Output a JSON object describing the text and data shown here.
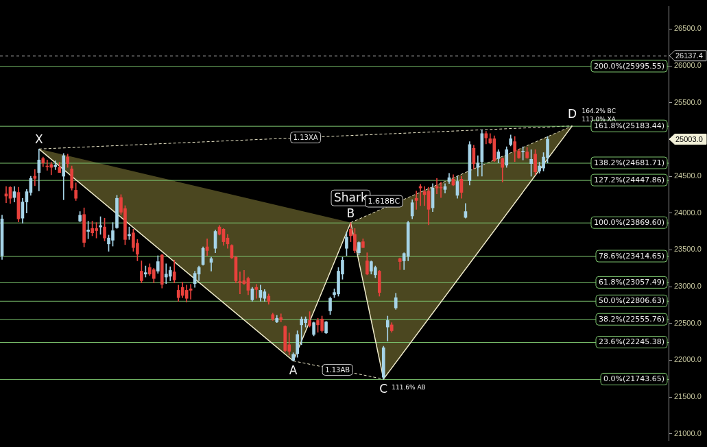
{
  "chart_data": {
    "type": "candlestick",
    "categories": [
      null,
      null,
      null,
      null,
      null,
      null,
      null,
      null,
      null,
      null,
      null,
      null,
      null,
      null,
      null,
      null,
      null,
      null,
      null,
      null,
      null,
      null,
      null,
      null,
      null,
      null,
      null,
      null,
      null,
      null,
      null,
      null,
      null,
      null,
      null,
      null,
      null,
      null,
      null,
      null,
      null,
      null,
      null,
      null,
      null,
      null,
      null,
      null,
      null,
      null,
      null,
      null,
      null,
      null,
      null,
      null,
      null,
      null,
      null,
      null,
      null,
      null,
      null,
      null,
      null,
      null,
      null,
      null,
      null,
      null,
      null,
      null,
      null,
      null,
      null,
      null,
      null,
      null,
      null,
      null,
      null,
      null,
      null,
      null,
      null,
      null,
      null,
      null,
      null,
      null,
      null,
      null,
      null,
      null,
      null,
      null,
      null,
      null,
      null,
      null,
      null,
      null,
      null,
      null,
      null,
      null,
      null,
      null,
      null,
      null,
      null,
      null,
      null,
      null,
      null,
      null,
      null,
      null,
      null,
      null,
      null,
      null,
      null,
      null,
      null,
      null,
      null,
      null,
      null,
      null,
      null,
      null,
      null,
      null,
      null,
      null,
      null,
      null,
      null,
      null,
      null,
      null,
      null,
      null,
      null,
      null,
      null,
      null,
      null,
      null,
      null,
      null,
      null,
      null,
      null,
      null,
      null,
      null,
      null,
      null,
      null,
      null,
      null
    ],
    "ylim": [
      20910,
      26805
    ],
    "yticks": [
      {
        "value": 21000,
        "label": "21000.0"
      },
      {
        "value": 21500,
        "label": "21500.0"
      },
      {
        "value": 22000,
        "label": "22000.0"
      },
      {
        "value": 22500,
        "label": "22500.0"
      },
      {
        "value": 23000,
        "label": "23000.0"
      },
      {
        "value": 23500,
        "label": "23500.0"
      },
      {
        "value": 24000,
        "label": "24000.0"
      },
      {
        "value": 24500,
        "label": "24500.0"
      },
      {
        "value": 25000,
        "label": null
      },
      {
        "value": 25500,
        "label": "25500.0"
      },
      {
        "value": 26000,
        "label": "26000.0"
      },
      {
        "value": 26500,
        "label": "26500.0"
      }
    ],
    "tick_labels": "y",
    "series": [
      {
        "type": "candlestick",
        "ohlc": [
          [
            23420,
            23970,
            23370,
            23920
          ],
          [
            24260,
            24360,
            24140,
            24230
          ],
          [
            24350,
            24360,
            24130,
            24200
          ],
          [
            24210,
            24360,
            24150,
            24290
          ],
          [
            24280,
            24350,
            23880,
            23920
          ],
          [
            23930,
            24200,
            23860,
            24150
          ],
          [
            24150,
            24320,
            24000,
            24290
          ],
          [
            24280,
            24500,
            24240,
            24470
          ],
          [
            24500,
            24590,
            24370,
            24470
          ],
          [
            24550,
            24870,
            24300,
            24720
          ],
          [
            24740,
            24760,
            24630,
            24680
          ],
          [
            24640,
            24720,
            24580,
            24630
          ],
          [
            24660,
            24690,
            24520,
            24620
          ],
          [
            24630,
            24710,
            24590,
            24650
          ],
          [
            24620,
            24690,
            24550,
            24550
          ],
          [
            24500,
            24810,
            24180,
            24780
          ],
          [
            24760,
            24800,
            24620,
            24670
          ],
          [
            24600,
            24640,
            24310,
            24340
          ],
          [
            24310,
            24410,
            24170,
            24200
          ],
          [
            23890,
            24020,
            23880,
            23970
          ],
          [
            23980,
            24070,
            23540,
            23600
          ],
          [
            23750,
            23890,
            23650,
            23770
          ],
          [
            23790,
            23890,
            23690,
            23730
          ],
          [
            23790,
            23870,
            23660,
            23760
          ],
          [
            23810,
            23950,
            23710,
            23830
          ],
          [
            23810,
            23930,
            23620,
            23660
          ],
          [
            23580,
            23700,
            23480,
            23660
          ],
          [
            23630,
            23870,
            23550,
            23760
          ],
          [
            23800,
            24240,
            23790,
            24200
          ],
          [
            24210,
            24250,
            23980,
            24010
          ],
          [
            24060,
            24100,
            23570,
            23640
          ],
          [
            23690,
            23810,
            23640,
            23710
          ],
          [
            23730,
            23780,
            23480,
            23530
          ],
          [
            23590,
            23640,
            23350,
            23440
          ],
          [
            23210,
            23350,
            23050,
            23080
          ],
          [
            23170,
            23280,
            23130,
            23190
          ],
          [
            23260,
            23310,
            23150,
            23170
          ],
          [
            23230,
            23250,
            23050,
            23110
          ],
          [
            23210,
            23420,
            23180,
            23340
          ],
          [
            23430,
            23440,
            22980,
            23030
          ],
          [
            23130,
            23310,
            23040,
            23170
          ],
          [
            23140,
            23270,
            23080,
            23220
          ],
          [
            23200,
            23360,
            23050,
            23090
          ],
          [
            22950,
            23020,
            22800,
            22850
          ],
          [
            22990,
            23060,
            22850,
            22880
          ],
          [
            22950,
            23020,
            22790,
            22840
          ],
          [
            22970,
            23030,
            22830,
            22950
          ],
          [
            23040,
            23210,
            22990,
            23180
          ],
          [
            23170,
            23280,
            23080,
            23260
          ],
          [
            23300,
            23540,
            23290,
            23520
          ],
          [
            23540,
            23650,
            23420,
            23490
          ],
          [
            23330,
            23400,
            23210,
            23380
          ],
          [
            23520,
            23770,
            23460,
            23750
          ],
          [
            23810,
            23830,
            23700,
            23710
          ],
          [
            23780,
            23790,
            23560,
            23610
          ],
          [
            23660,
            23710,
            23520,
            23580
          ],
          [
            23560,
            23570,
            23380,
            23390
          ],
          [
            23400,
            23410,
            23050,
            23080
          ],
          [
            23070,
            23200,
            22900,
            23050
          ],
          [
            23080,
            23220,
            23030,
            23040
          ],
          [
            23110,
            23130,
            22890,
            22950
          ],
          [
            22820,
            22990,
            22800,
            22970
          ],
          [
            22990,
            23030,
            22840,
            22960
          ],
          [
            22850,
            23020,
            22800,
            22950
          ],
          [
            22840,
            22960,
            22800,
            22930
          ],
          [
            22870,
            22900,
            22760,
            22800
          ],
          [
            22620,
            22640,
            22540,
            22560
          ],
          [
            22520,
            22610,
            22510,
            22570
          ],
          [
            22580,
            22630,
            22520,
            22550
          ],
          [
            22460,
            22470,
            22110,
            22130
          ],
          [
            22210,
            22370,
            22070,
            22120
          ],
          [
            22000,
            22100,
            21990,
            22080
          ],
          [
            22090,
            22400,
            22040,
            22350
          ],
          [
            22480,
            22590,
            22210,
            22560
          ],
          [
            22510,
            22590,
            22450,
            22560
          ],
          [
            22540,
            22660,
            22450,
            22470
          ],
          [
            22350,
            22520,
            22330,
            22510
          ],
          [
            22540,
            22570,
            22380,
            22480
          ],
          [
            22560,
            22600,
            22380,
            22400
          ],
          [
            22370,
            22530,
            22360,
            22520
          ],
          [
            22670,
            22860,
            22620,
            22840
          ],
          [
            22890,
            22970,
            22850,
            22920
          ],
          [
            22900,
            23260,
            22870,
            23210
          ],
          [
            23170,
            23400,
            23100,
            23360
          ],
          [
            23520,
            23740,
            23420,
            23670
          ],
          [
            23780,
            23869.6,
            23610,
            23690
          ],
          [
            23710,
            23790,
            23460,
            23490
          ],
          [
            23460,
            23610,
            23430,
            23600
          ],
          [
            23610,
            23650,
            23530,
            23530
          ],
          [
            23350,
            23460,
            23160,
            23170
          ],
          [
            23210,
            23350,
            23170,
            23340
          ],
          [
            23160,
            23280,
            23120,
            23260
          ],
          [
            23210,
            23220,
            22870,
            22920
          ],
          [
            21770,
            22190,
            21743.65,
            22170
          ],
          [
            22450,
            22600,
            22260,
            22540
          ],
          [
            22480,
            22510,
            22380,
            22400
          ],
          [
            22710,
            22910,
            22690,
            22850
          ],
          [
            23380,
            23390,
            23230,
            23340
          ],
          [
            23350,
            23460,
            23230,
            23450
          ],
          [
            23410,
            23890,
            23350,
            23870
          ],
          [
            23960,
            24180,
            23920,
            24140
          ],
          [
            24200,
            24300,
            24050,
            24170
          ],
          [
            24360,
            24390,
            24100,
            24340
          ],
          [
            24290,
            24360,
            24100,
            24250
          ],
          [
            24300,
            24350,
            23840,
            24050
          ],
          [
            24070,
            24400,
            24020,
            24340
          ],
          [
            24360,
            24470,
            24260,
            24340
          ],
          [
            24350,
            24420,
            24210,
            24340
          ],
          [
            24320,
            24400,
            24270,
            24360
          ],
          [
            24430,
            24540,
            24400,
            24480
          ],
          [
            24460,
            24520,
            24370,
            24380
          ],
          [
            24240,
            24500,
            24200,
            24430
          ],
          [
            24460,
            24500,
            24200,
            24280
          ],
          [
            23940,
            24130,
            23930,
            24020
          ],
          [
            24440,
            24970,
            24380,
            24930
          ],
          [
            24880,
            24920,
            24600,
            24670
          ],
          [
            24620,
            24780,
            24500,
            24680
          ],
          [
            24700,
            25130,
            24500,
            25080
          ],
          [
            25080,
            25110,
            24940,
            25020
          ],
          [
            25010,
            25080,
            24940,
            24950
          ],
          [
            25010,
            25050,
            24700,
            24710
          ],
          [
            24740,
            24860,
            24680,
            24830
          ],
          [
            24740,
            24750,
            24420,
            24620
          ],
          [
            24650,
            24900,
            24620,
            24860
          ],
          [
            24930,
            25060,
            24910,
            25010
          ],
          [
            24970,
            25040,
            24700,
            24840
          ],
          [
            24840,
            24870,
            24740,
            24750
          ],
          [
            24830,
            24900,
            24720,
            24840
          ],
          [
            24830,
            24890,
            24740,
            24750
          ],
          [
            24670,
            24860,
            24500,
            24730
          ],
          [
            24800,
            24860,
            24520,
            24560
          ],
          [
            24570,
            24690,
            24540,
            24640
          ],
          [
            24610,
            24820,
            24570,
            24760
          ],
          [
            24750,
            25040,
            24680,
            25003
          ],
          null,
          null,
          null,
          null,
          null,
          null,
          null,
          null,
          null,
          null,
          null,
          null,
          null,
          null,
          null,
          null,
          null,
          null,
          null,
          null,
          null,
          null,
          null,
          null,
          null,
          null,
          null,
          null,
          null
        ],
        "colors": [
          "#a6d4e8",
          "#e8413c",
          "#e8413c",
          "#a6d4e8",
          "#e8413c",
          "#a6d4e8",
          "#a6d4e8",
          "#a6d4e8",
          "#e8413c",
          "#a6d4e8",
          "#e8413c",
          "#e8413c",
          "#e8413c",
          "#a6d4e8",
          "#e8413c",
          "#a6d4e8",
          "#e8413c",
          "#e8413c",
          "#e8413c",
          "#a6d4e8",
          "#e8413c",
          "#a6d4e8",
          "#e8413c",
          "#e8413c",
          "#a6d4e8",
          "#e8413c",
          "#a6d4e8",
          "#a6d4e8",
          "#a6d4e8",
          "#e8413c",
          "#e8413c",
          "#a6d4e8",
          "#e8413c",
          "#e8413c",
          "#e8413c",
          "#a6d4e8",
          "#e8413c",
          "#e8413c",
          "#a6d4e8",
          "#e8413c",
          "#a6d4e8",
          "#a6d4e8",
          "#e8413c",
          "#e8413c",
          "#e8413c",
          "#e8413c",
          "#e8413c",
          "#a6d4e8",
          "#a6d4e8",
          "#a6d4e8",
          "#e8413c",
          "#a6d4e8",
          "#a6d4e8",
          "#e8413c",
          "#e8413c",
          "#e8413c",
          "#e8413c",
          "#e8413c",
          "#e8413c",
          "#e8413c",
          "#e8413c",
          "#a6d4e8",
          "#e8413c",
          "#a6d4e8",
          "#a6d4e8",
          "#e8413c",
          "#e8413c",
          "#a6d4e8",
          "#e8413c",
          "#e8413c",
          "#e8413c",
          "#a6d4e8",
          "#a6d4e8",
          "#a6d4e8",
          "#a6d4e8",
          "#e8413c",
          "#a6d4e8",
          "#e8413c",
          "#e8413c",
          "#a6d4e8",
          "#a6d4e8",
          "#a6d4e8",
          "#a6d4e8",
          "#a6d4e8",
          "#a6d4e8",
          "#e8413c",
          "#e8413c",
          "#a6d4e8",
          "#e8413c",
          "#e8413c",
          "#a6d4e8",
          "#a6d4e8",
          "#e8413c",
          "#a6d4e8",
          "#a6d4e8",
          "#e8413c",
          "#a6d4e8",
          "#e8413c",
          "#a6d4e8",
          "#a6d4e8",
          "#a6d4e8",
          "#e8413c",
          "#e8413c",
          "#e8413c",
          "#e8413c",
          "#a6d4e8",
          "#e8413c",
          "#e8413c",
          "#a6d4e8",
          "#a6d4e8",
          "#e8413c",
          "#a6d4e8",
          "#e8413c",
          "#a6d4e8",
          "#a6d4e8",
          "#e8413c",
          "#a6d4e8",
          "#a6d4e8",
          "#e8413c",
          "#e8413c",
          "#e8413c",
          "#a6d4e8",
          "#e8413c",
          "#a6d4e8",
          "#a6d4e8",
          "#e8413c",
          "#e8413c",
          "#a6d4e8",
          "#e8413c",
          "#a6d4e8",
          "#e8413c",
          "#a6d4e8",
          "#a6d4e8",
          "#a6d4e8",
          null,
          null,
          null,
          null,
          null,
          null,
          null,
          null,
          null,
          null,
          null,
          null,
          null,
          null,
          null,
          null,
          null,
          null,
          null,
          null,
          null,
          null,
          null,
          null,
          null,
          null,
          null,
          null,
          null
        ]
      },
      {
        "type": "line",
        "color": "#eeeacb",
        "values": [
          null,
          null,
          null,
          null,
          null,
          null,
          null,
          null,
          null,
          24870,
          null,
          null,
          null,
          null,
          null,
          null,
          null,
          null,
          null,
          null,
          null,
          null,
          null,
          null,
          null,
          null,
          null,
          null,
          null,
          null,
          null,
          null,
          null,
          null,
          null,
          null,
          null,
          null,
          null,
          null,
          null,
          null,
          null,
          null,
          null,
          null,
          null,
          null,
          null,
          null,
          null,
          null,
          null,
          null,
          null,
          null,
          null,
          null,
          null,
          null,
          null,
          null,
          null,
          null,
          null,
          null,
          null,
          null,
          null,
          null,
          null,
          21990,
          null,
          null,
          null,
          null,
          null,
          null,
          null,
          null,
          null,
          null,
          null,
          null,
          null,
          23869.6,
          null,
          null,
          null,
          null,
          null,
          null,
          null,
          21743.65,
          null,
          null,
          null,
          null,
          null,
          null,
          null,
          null,
          null,
          null,
          null,
          null,
          null,
          null,
          null,
          null,
          null,
          null,
          null,
          null,
          null,
          null,
          null,
          null,
          null,
          null,
          null,
          null,
          null,
          null,
          null,
          null,
          null,
          null,
          null,
          null,
          null,
          null,
          null,
          null,
          null,
          null,
          null,
          null,
          null,
          25183.44,
          null,
          null,
          null,
          null,
          null,
          null,
          null,
          null,
          null,
          null,
          null,
          null,
          null,
          null,
          null,
          null,
          null,
          null,
          null,
          null,
          null,
          null,
          null
        ]
      }
    ],
    "ref_lines": [
      {
        "axis": "y",
        "value": 26137.4,
        "label": "26137.4",
        "color": "#b4b4b4",
        "line_style": "dashed"
      },
      {
        "axis": "y",
        "value": 25995.55,
        "label": "200.0%(25995.55)",
        "color": "#7cc46e",
        "line_style": "solid"
      },
      {
        "axis": "y",
        "value": 25183.44,
        "label": "161.8%(25183.44)",
        "color": "#7cc46e",
        "line_style": "solid"
      },
      {
        "axis": "y",
        "value": 24681.71,
        "label": "138.2%(24681.71)",
        "color": "#7cc46e",
        "line_style": "solid"
      },
      {
        "axis": "y",
        "value": 24447.86,
        "label": "127.2%(24447.86)",
        "color": "#7cc46e",
        "line_style": "solid"
      },
      {
        "axis": "y",
        "value": 23869.6,
        "label": "100.0%(23869.60)",
        "color": "#7cc46e",
        "line_style": "solid"
      },
      {
        "axis": "y",
        "value": 23414.65,
        "label": "78.6%(23414.65)",
        "color": "#7cc46e",
        "line_style": "solid"
      },
      {
        "axis": "y",
        "value": 23057.49,
        "label": "61.8%(23057.49)",
        "color": "#7cc46e",
        "line_style": "solid"
      },
      {
        "axis": "y",
        "value": 22806.63,
        "label": "50.0%(22806.63)",
        "color": "#7cc46e",
        "line_style": "solid"
      },
      {
        "axis": "y",
        "value": 22555.76,
        "label": "38.2%(22555.76)",
        "color": "#7cc46e",
        "line_style": "solid"
      },
      {
        "axis": "y",
        "value": 22245.38,
        "label": "23.6%(22245.38)",
        "color": "#7cc46e",
        "line_style": "solid"
      },
      {
        "axis": "y",
        "value": 21743.65,
        "label": "0.0%(21743.65)",
        "color": "#7cc46e",
        "line_style": "solid"
      }
    ],
    "annotations": [
      "Shark",
      "X",
      "A",
      "B",
      "C",
      "D",
      "1.13XA",
      "1.13AB",
      "1.618BC",
      "164.2% BC",
      "113.0% XA",
      "111.6% AB",
      "25003.0"
    ]
  }
}
